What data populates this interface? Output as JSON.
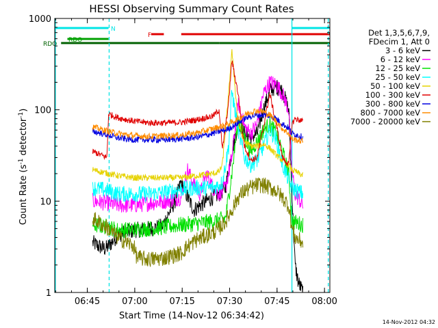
{
  "chart_data": {
    "type": "line",
    "title": "HESSI Observing Summary Count Rates",
    "xlabel": "Start Time (14-Nov-12 06:34:42)",
    "ylabel_main": "Count Rate (s",
    "ylabel_sup1": "-1",
    "ylabel_mid": " detector",
    "ylabel_sup2": "-1",
    "ylabel_end": ")",
    "y_scale": "log",
    "ylim": [
      1,
      1000
    ],
    "xlim_minutes": [
      0,
      87
    ],
    "x_ticks": [
      {
        "label": "06:45",
        "t": 10.3
      },
      {
        "label": "07:00",
        "t": 25.3
      },
      {
        "label": "07:15",
        "t": 40.3
      },
      {
        "label": "07:30",
        "t": 55.3
      },
      {
        "label": "07:45",
        "t": 70.3
      },
      {
        "label": "08:00",
        "t": 85.3
      }
    ],
    "y_ticks": [
      {
        "label": "1",
        "v": 1
      },
      {
        "label": "10",
        "v": 10
      },
      {
        "label": "100",
        "v": 100
      },
      {
        "label": "1000",
        "v": 1000
      }
    ],
    "legend_header": [
      "Det 1,3,5,6,7,9,",
      "FDecim 1, Att 0"
    ],
    "legend_position": "right",
    "timestamp": "14-Nov-2012 04:32",
    "flags": [
      {
        "label": "N",
        "color": "#00e5e5",
        "segments": [
          [
            0,
            17
          ],
          [
            75,
            87
          ]
        ]
      },
      {
        "label": "F",
        "color": "#e00000",
        "segments": [
          [
            30.5,
            34.5
          ],
          [
            40,
            87
          ]
        ]
      },
      {
        "label": "RDO",
        "color": "#00a000",
        "segments": [
          [
            4,
            17
          ]
        ]
      },
      {
        "label": "RDO",
        "color": "#006000",
        "segments": [
          [
            2,
            17
          ],
          [
            17,
            52
          ],
          [
            52,
            75
          ],
          [
            75,
            87
          ]
        ]
      }
    ],
    "vertical_lines": [
      {
        "t": 0.2,
        "color": "#00e5e5",
        "style": "solid"
      },
      {
        "t": 17.2,
        "color": "#00e5e5",
        "style": "dashed"
      },
      {
        "t": 75.0,
        "color": "#00e5e5",
        "style": "solid"
      },
      {
        "t": 86.5,
        "color": "#00e5e5",
        "style": "dashed"
      }
    ],
    "series": [
      {
        "name": "3 - 6 keV",
        "color": "#000000",
        "x": [
          12,
          14,
          16,
          17,
          20,
          25,
          30,
          34,
          38,
          40,
          42,
          44,
          46,
          48,
          50,
          52,
          54,
          56,
          58,
          60,
          62,
          64,
          66,
          68,
          70,
          72,
          74,
          75,
          76,
          77,
          78.5
        ],
        "y": [
          3.5,
          3.2,
          3.0,
          3.2,
          4.3,
          4.8,
          5.0,
          5.3,
          10,
          16,
          11,
          8,
          9,
          10,
          11,
          12,
          14,
          35,
          70,
          55,
          50,
          55,
          100,
          160,
          180,
          160,
          100,
          12,
          2,
          1.3,
          1.0
        ]
      },
      {
        "name": "6 - 12 keV",
        "color": "#ff00ff",
        "x": [
          12,
          17,
          20,
          25,
          30,
          35,
          40,
          42,
          44,
          46,
          48,
          50,
          52,
          54,
          56,
          58,
          60,
          62,
          64,
          66,
          68,
          70,
          72,
          74,
          75,
          76,
          78.5
        ],
        "y": [
          10,
          9.5,
          9.0,
          9.0,
          9.5,
          10,
          11,
          22,
          15,
          12,
          20,
          14,
          12,
          14,
          30,
          120,
          65,
          55,
          70,
          150,
          200,
          190,
          150,
          100,
          22,
          12,
          9
        ]
      },
      {
        "name": "12 - 25 keV",
        "color": "#00e000",
        "x": [
          12,
          17,
          20,
          25,
          30,
          35,
          40,
          45,
          50,
          52,
          54,
          56,
          58,
          60,
          62,
          64,
          66,
          68,
          70,
          72,
          74,
          75,
          78.5
        ],
        "y": [
          5.5,
          5.2,
          4.8,
          4.9,
          5.0,
          5.2,
          5.5,
          5.7,
          6.0,
          6.2,
          6.5,
          20,
          80,
          50,
          35,
          45,
          60,
          70,
          55,
          35,
          20,
          6.0,
          5.5
        ]
      },
      {
        "name": "25 - 50 keV",
        "color": "#00ffff",
        "x": [
          12,
          17,
          20,
          25,
          30,
          35,
          40,
          45,
          50,
          52,
          53,
          55,
          56,
          58,
          60,
          62,
          64,
          66,
          68,
          70,
          72,
          74,
          75,
          78.5
        ],
        "y": [
          14,
          13,
          12,
          12,
          12,
          12.5,
          13.5,
          14,
          14,
          15,
          16,
          40,
          160,
          60,
          30,
          25,
          28,
          40,
          60,
          48,
          25,
          17,
          14,
          12
        ]
      },
      {
        "name": "50 - 100 keV",
        "color": "#e6d200",
        "x": [
          12,
          17,
          20,
          25,
          30,
          35,
          40,
          45,
          50,
          52,
          53,
          55,
          56,
          58,
          60,
          62,
          64,
          66,
          68,
          70,
          72,
          74,
          75,
          78.5
        ],
        "y": [
          22,
          20,
          19,
          18,
          18,
          18,
          18,
          19,
          20,
          21,
          25,
          150,
          450,
          70,
          45,
          40,
          40,
          42,
          38,
          32,
          28,
          25,
          22,
          19
        ]
      },
      {
        "name": "100 - 300 keV",
        "color": "#e00000",
        "x": [
          12,
          16.5,
          17,
          20,
          25,
          30,
          35,
          40,
          45,
          50,
          52,
          53,
          55,
          56,
          58,
          60,
          62,
          64,
          66,
          68,
          70,
          72,
          74,
          75,
          76,
          78.5
        ],
        "y": [
          35,
          30,
          90,
          82,
          75,
          72,
          72,
          73,
          78,
          85,
          100,
          36,
          120,
          350,
          150,
          40,
          28,
          30,
          65,
          150,
          70,
          30,
          25,
          70,
          80,
          75
        ]
      },
      {
        "name": "300 - 800 keV",
        "color": "#0000e0",
        "x": [
          12,
          17,
          20,
          25,
          30,
          35,
          40,
          45,
          50,
          52,
          54,
          56,
          58,
          60,
          62,
          64,
          66,
          68,
          70,
          72,
          74,
          75,
          76,
          78.5
        ],
        "y": [
          58,
          53,
          49,
          47,
          47,
          47,
          48,
          50,
          55,
          58,
          60,
          65,
          72,
          80,
          85,
          87,
          88,
          86,
          80,
          70,
          63,
          55,
          54,
          50
        ]
      },
      {
        "name": "800 - 7000 keV",
        "color": "#ff8c00",
        "x": [
          12,
          17,
          20,
          25,
          30,
          35,
          40,
          45,
          50,
          52,
          54,
          56,
          58,
          60,
          62,
          64,
          66,
          68,
          70,
          72,
          74,
          75,
          76,
          78.5
        ],
        "y": [
          65,
          58,
          55,
          52,
          51,
          52,
          53,
          56,
          62,
          65,
          68,
          73,
          80,
          88,
          95,
          98,
          95,
          88,
          75,
          62,
          55,
          48,
          47,
          45
        ]
      },
      {
        "name": "7000 - 20000 keV",
        "color": "#808000",
        "x": [
          12,
          17,
          20,
          25,
          26,
          30,
          35,
          40,
          42,
          45,
          50,
          52,
          54,
          56,
          58,
          60,
          62,
          64,
          66,
          68,
          70,
          72,
          74,
          75,
          76,
          78.5
        ],
        "y": [
          6.5,
          5.0,
          4.0,
          3.2,
          2.4,
          2.3,
          2.4,
          2.7,
          3.2,
          3.8,
          4.5,
          5.0,
          6.0,
          8.0,
          11,
          13,
          14,
          15,
          15,
          14,
          13,
          11,
          9,
          5.0,
          4.0,
          3.5
        ]
      }
    ]
  }
}
